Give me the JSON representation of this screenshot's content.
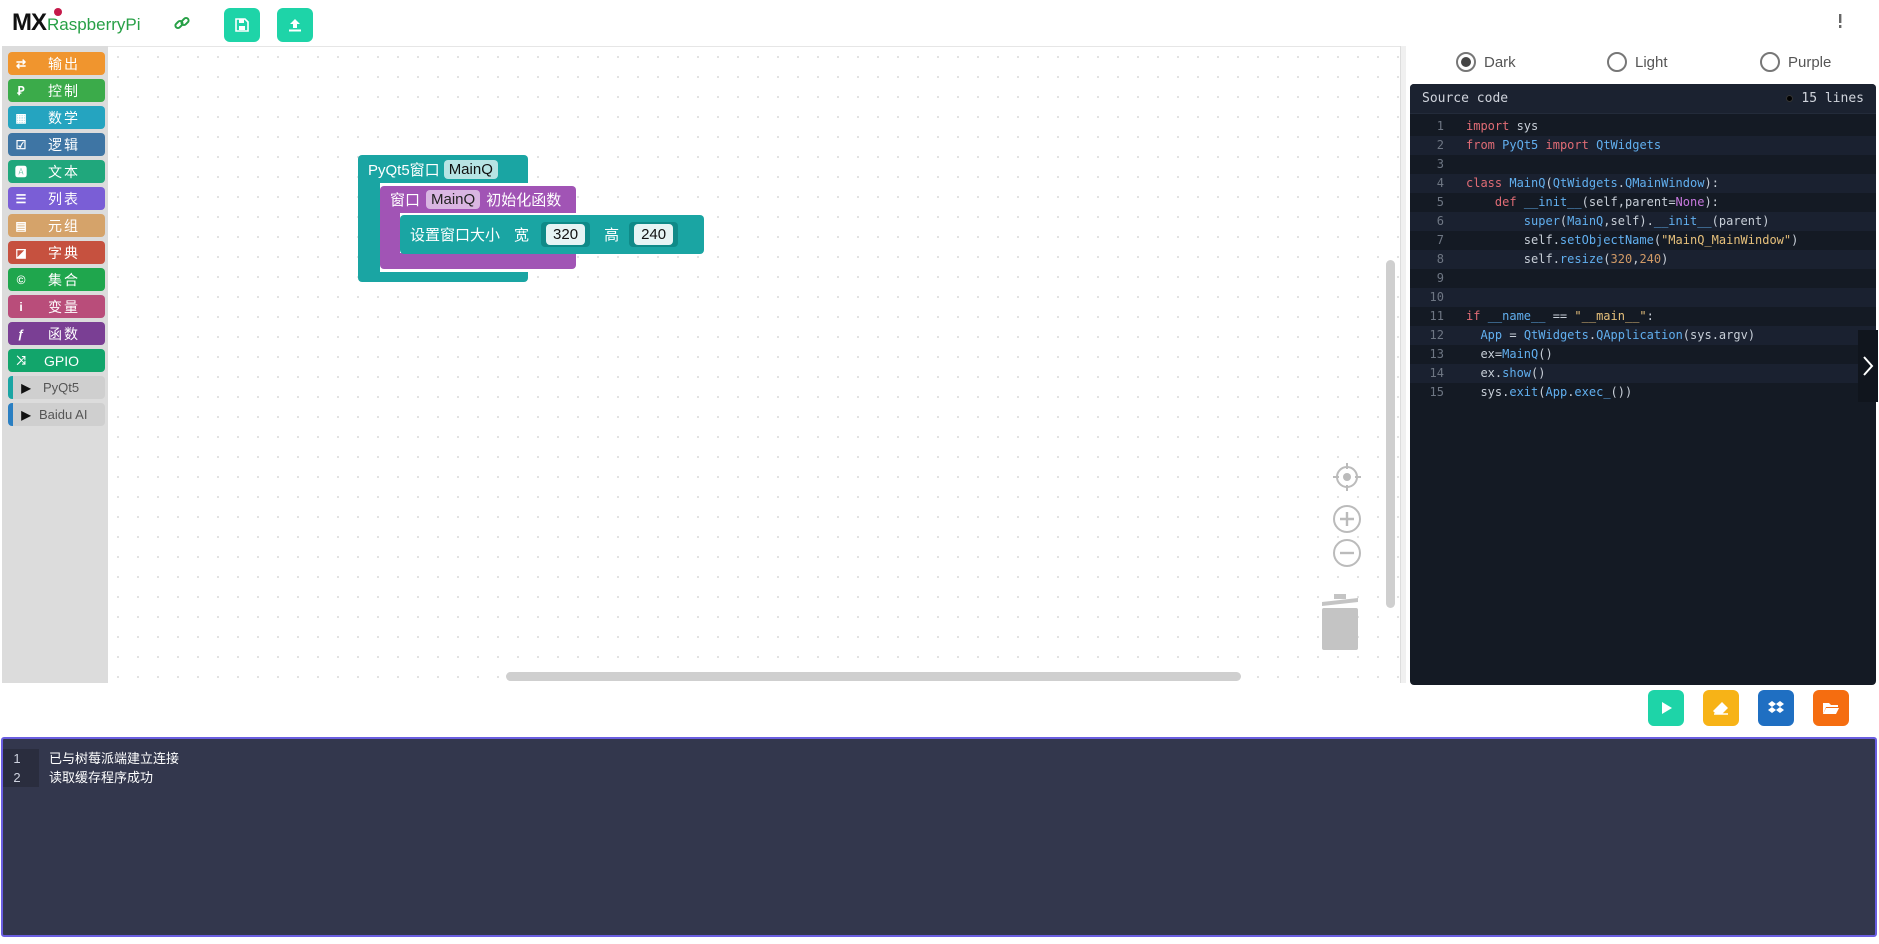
{
  "app": {
    "logo_main": "MX",
    "logo_sub": "RaspberryPi"
  },
  "colors": {
    "accent": "#1ed4a8",
    "console_bg": "#33374d",
    "console_border": "#6a5ee0",
    "code_bg": "#141a24"
  },
  "toolbox": {
    "categories": [
      {
        "label": "输出",
        "icon": "swap-arrows-icon",
        "color": "#f0952e"
      },
      {
        "label": "控制",
        "icon": "flow-control-icon",
        "color": "#3bab4a"
      },
      {
        "label": "数学",
        "icon": "calculator-icon",
        "color": "#25a4c0"
      },
      {
        "label": "逻辑",
        "icon": "checkbox-icon",
        "color": "#3e75a4"
      },
      {
        "label": "文本",
        "icon": "text-a-icon",
        "color": "#20a77c"
      },
      {
        "label": "列表",
        "icon": "list-icon",
        "color": "#7a5ed6"
      },
      {
        "label": "元组",
        "icon": "grid-icon",
        "color": "#d5a36a"
      },
      {
        "label": "字典",
        "icon": "book-icon",
        "color": "#c6513f"
      },
      {
        "label": "集合",
        "icon": "copyright-c-icon",
        "color": "#1fa64d"
      },
      {
        "label": "变量",
        "icon": "info-icon",
        "color": "#b94d7a"
      },
      {
        "label": "函数",
        "icon": "function-icon",
        "color": "#7a3f94"
      },
      {
        "label": "GPIO",
        "icon": "shuffle-icon",
        "color": "#12a56b"
      }
    ],
    "groups": [
      {
        "label": "PyQt5",
        "color": "#1aa5a3"
      },
      {
        "label": "Baidu AI",
        "color": "#2a7fc2"
      }
    ]
  },
  "blocks": {
    "window_label": "PyQt5窗口",
    "window_name": "MainQ",
    "init_prefix": "窗口",
    "init_name": "MainQ",
    "init_suffix": "初始化函数",
    "resize_label": "设置窗口大小",
    "width_label": "宽",
    "width_value": "320",
    "height_label": "高",
    "height_value": "240"
  },
  "themes": {
    "options": [
      "Dark",
      "Light",
      "Purple"
    ],
    "selected": "Dark"
  },
  "code": {
    "title": "Source code",
    "line_count": "15 lines",
    "lines": [
      "import sys",
      "from PyQt5 import QtWidgets",
      "",
      "class MainQ(QtWidgets.QMainWindow):",
      "    def __init__(self,parent=None):",
      "        super(MainQ,self).__init__(parent)",
      "        self.setObjectName(\"MainQ_MainWindow\")",
      "        self.resize(320,240)",
      "",
      "",
      "if __name__ == \"__main__\":",
      "  App = QtWidgets.QApplication(sys.argv)",
      "  ex=MainQ()",
      "  ex.show()",
      "  sys.exit(App.exec_())"
    ]
  },
  "console": {
    "lines": [
      {
        "num": "1",
        "text": "已与树莓派端建立连接"
      },
      {
        "num": "2",
        "text": "读取缓存程序成功"
      }
    ]
  }
}
